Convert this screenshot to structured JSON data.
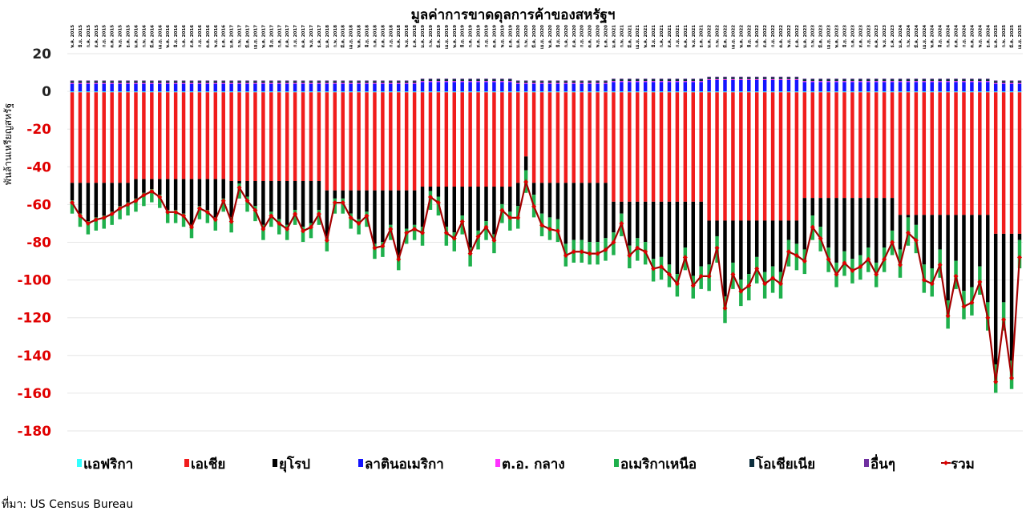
{
  "chart_data": {
    "type": "bar",
    "stacked": true,
    "title": "มูลค่าการขาดดุลการค้าของสหรัฐฯ",
    "y_label": "พันล้านเหรียญสหรัฐ",
    "source": "ที่มา: US Census Bureau",
    "ylim": [
      -180,
      20
    ],
    "yticks": [
      -180,
      -160,
      -140,
      -120,
      -100,
      -80,
      -60,
      -40,
      -20,
      0,
      20
    ],
    "grid": true,
    "legend": "bottom",
    "categories": [
      "พ.ค. 2015",
      "มิ.ย. 2015",
      "ก.ค. 2015",
      "ส.ค. 2015",
      "ก.ย. 2015",
      "ต.ค. 2015",
      "พ.ย. 2015",
      "ธ.ค. 2015",
      "ม.ค. 2016",
      "ก.พ. 2016",
      "มี.ค. 2016",
      "เม.ย. 2016",
      "พ.ค. 2016",
      "มิ.ย. 2016",
      "ก.ค. 2016",
      "ส.ค. 2016",
      "ก.ย. 2016",
      "ต.ค. 2016",
      "พ.ย. 2016",
      "ธ.ค. 2016",
      "ม.ค. 2017",
      "ก.พ. 2017",
      "มี.ค. 2017",
      "เม.ย. 2017",
      "พ.ค. 2017",
      "มิ.ย. 2017",
      "ก.ค. 2017",
      "ส.ค. 2017",
      "ก.ย. 2017",
      "ต.ค. 2017",
      "พ.ย. 2017",
      "ธ.ค. 2017",
      "ม.ค. 2018",
      "ก.พ. 2018",
      "มี.ค. 2018",
      "เม.ย. 2018",
      "พ.ค. 2018",
      "มิ.ย. 2018",
      "ก.ค. 2018",
      "ส.ค. 2018",
      "ก.ย. 2018",
      "ต.ค. 2018",
      "พ.ย. 2018",
      "ธ.ค. 2018",
      "ม.ค. 2019",
      "ก.พ. 2019",
      "มี.ค. 2019",
      "เม.ย. 2019",
      "พ.ค. 2019",
      "มิ.ย. 2019",
      "ก.ค. 2019",
      "ส.ค. 2019",
      "ก.ย. 2019",
      "ต.ค. 2019",
      "พ.ย. 2019",
      "ธ.ค. 2019",
      "ม.ค. 2020",
      "ก.พ. 2020",
      "มี.ค. 2020",
      "เม.ย. 2020",
      "พ.ค. 2020",
      "มิ.ย. 2020",
      "ก.ค. 2020",
      "ส.ค. 2020",
      "ก.ย. 2020",
      "ต.ค. 2020",
      "พ.ย. 2020",
      "ธ.ค. 2020",
      "ม.ค. 2021",
      "ก.พ. 2021",
      "มี.ค. 2021",
      "เม.ย. 2021",
      "พ.ค. 2021",
      "มิ.ย. 2021",
      "ก.ค. 2021",
      "ส.ค. 2021",
      "ก.ย. 2021",
      "ต.ค. 2021",
      "พ.ย. 2021",
      "ธ.ค. 2021",
      "ม.ค. 2022",
      "ก.พ. 2022",
      "มี.ค. 2022",
      "เม.ย. 2022",
      "พ.ค. 2022",
      "มิ.ย. 2022",
      "ก.ค. 2022",
      "ส.ค. 2022",
      "ก.ย. 2022",
      "ต.ค. 2022",
      "พ.ย. 2022",
      "ธ.ค. 2022",
      "ม.ค. 2023",
      "ก.พ. 2023",
      "มี.ค. 2023",
      "เม.ย. 2023",
      "พ.ค. 2023",
      "มิ.ย. 2023",
      "ก.ค. 2023",
      "ส.ค. 2023",
      "ก.ย. 2023",
      "ต.ค. 2023",
      "พ.ย. 2023",
      "ธ.ค. 2023",
      "ม.ค. 2024",
      "ก.พ. 2024",
      "มี.ค. 2024",
      "เม.ย. 2024",
      "พ.ค. 2024",
      "มิ.ย. 2024",
      "ก.ค. 2024",
      "ส.ค. 2024",
      "ก.ย. 2024",
      "ต.ค. 2024",
      "พ.ย. 2024",
      "ธ.ค. 2024",
      "ม.ค. 2025",
      "ก.พ. 2025",
      "มี.ค. 2025",
      "เม.ย. 2025"
    ],
    "series": [
      {
        "name": "แอฟริกา",
        "color": "#33ffff",
        "values": [
          -0.5,
          -0.5,
          -0.5,
          -0.5,
          -0.5,
          -0.5,
          -0.5,
          -0.5,
          -0.5,
          -0.5,
          -0.5,
          -0.5,
          -0.5,
          -0.5,
          -0.5,
          -0.5,
          -0.5,
          -0.5,
          -0.5,
          -0.5,
          -0.5,
          -0.5,
          -0.5,
          -0.5,
          -0.5,
          -0.5,
          -0.5,
          -0.5,
          -0.5,
          -0.5,
          -0.5,
          -0.5,
          -0.5,
          -0.5,
          -0.5,
          -0.5,
          -0.5,
          -0.5,
          -0.5,
          -0.5,
          -0.5,
          -0.5,
          -0.5,
          -0.5,
          -0.5,
          -0.5,
          -0.5,
          -0.5,
          -0.5,
          -0.5,
          -0.5,
          -0.5,
          -0.5,
          -0.5,
          -0.5,
          -0.5,
          -0.5,
          -0.5,
          -0.5,
          -0.5,
          -0.5,
          -0.5,
          -0.5,
          -0.5,
          -0.5,
          -0.5,
          -0.5,
          -0.5,
          -0.5,
          -0.5,
          -0.5,
          -0.5,
          -0.5,
          -0.5,
          -0.5,
          -0.5,
          -0.5,
          -0.5,
          -0.5,
          -0.5,
          -0.5,
          -0.5,
          -0.5,
          -0.5,
          -0.5,
          -0.5,
          -0.5,
          -0.5,
          -0.5,
          -0.5,
          -0.5,
          -0.5,
          -0.5,
          -0.5,
          -0.5,
          -0.5,
          -0.5,
          -0.5,
          -0.5,
          -0.5,
          -0.5,
          -0.5,
          -0.5,
          -0.5,
          -0.5,
          -0.5,
          -0.5,
          -0.5,
          -0.5,
          -0.5,
          -0.5,
          -0.5,
          -0.5,
          -0.5,
          -0.5,
          -0.5,
          -0.5,
          -0.5,
          -0.5,
          -0.5
        ]
      },
      {
        "name": "เอเชีย",
        "color": "#f01c1c",
        "values": [
          -48,
          -48,
          -48,
          -48,
          -48,
          -48,
          -48,
          -48,
          -46,
          -46,
          -46,
          -46,
          -46,
          -46,
          -46,
          -46,
          -46,
          -46,
          -46,
          -46,
          -47,
          -47,
          -47,
          -47,
          -47,
          -47,
          -47,
          -47,
          -47,
          -47,
          -47,
          -47,
          -52,
          -52,
          -52,
          -52,
          -52,
          -52,
          -52,
          -52,
          -52,
          -52,
          -52,
          -52,
          -50,
          -50,
          -50,
          -50,
          -50,
          -50,
          -50,
          -50,
          -50,
          -50,
          -50,
          -50,
          -48,
          -34,
          -48,
          -48,
          -48,
          -48,
          -48,
          -48,
          -48,
          -48,
          -48,
          -48,
          -58,
          -58,
          -58,
          -58,
          -58,
          -58,
          -58,
          -58,
          -58,
          -58,
          -58,
          -58,
          -68,
          -68,
          -68,
          -68,
          -68,
          -68,
          -68,
          -68,
          -68,
          -68,
          -68,
          -68,
          -56,
          -56,
          -56,
          -56,
          -56,
          -56,
          -56,
          -56,
          -56,
          -56,
          -56,
          -56,
          -65,
          -65,
          -65,
          -65,
          -65,
          -65,
          -65,
          -65,
          -65,
          -65,
          -65,
          -65,
          -75,
          -75,
          -75,
          -75
        ]
      },
      {
        "name": "ยุโรป",
        "color": "#000000",
        "values": [
          -9.3,
          -16.3,
          -20.3,
          -18.3,
          -17.3,
          -15.3,
          -12.3,
          -10.3,
          -10.3,
          -7.3,
          -5.3,
          -8.3,
          -16.3,
          -16.3,
          -18.3,
          -24.3,
          -14.3,
          -16.3,
          -20.3,
          -10.3,
          -19.3,
          -1.3,
          -8.3,
          -13.3,
          -23.3,
          -16.3,
          -20.3,
          -23.3,
          -15.3,
          -24.3,
          -22.3,
          -15.3,
          -24.3,
          -4.3,
          -4.3,
          -12.3,
          -15.3,
          -11.3,
          -28.3,
          -27.3,
          -18.3,
          -34.3,
          -20.3,
          -18.3,
          -21.3,
          -2.3,
          -5.3,
          -21.3,
          -24.3,
          -15.3,
          -32.3,
          -23.3,
          -18.3,
          -25.3,
          -9.3,
          -13.3,
          -12.3,
          -7.3,
          -6.3,
          -16.3,
          -18.3,
          -19.3,
          -32.3,
          -30.3,
          -30.3,
          -31.3,
          -31.3,
          -29.3,
          -16.3,
          -6.3,
          -23.3,
          -19.3,
          -21.3,
          -30.3,
          -29.3,
          -33.3,
          -38.3,
          -24.3,
          -39.3,
          -34.3,
          -23.3,
          -8.3,
          -40.3,
          -22.3,
          -31.3,
          -28.3,
          -19.3,
          -27.3,
          -24.3,
          -27.3,
          -10.3,
          -12.3,
          -27.3,
          -9.3,
          -15.3,
          -26.3,
          -34.3,
          -28.3,
          -32.3,
          -30.3,
          -26.3,
          -34.3,
          -26.3,
          -17.3,
          -18.3,
          -1.3,
          -5.3,
          -26.3,
          -28.3,
          -18.3,
          -45.3,
          -24.3,
          -40.3,
          -38.3,
          -27.3,
          -46.3,
          -69.3,
          -36.3,
          -67.3,
          -3.3
        ]
      },
      {
        "name": "ลาตินอเมริกา",
        "color": "#1414ff",
        "values": [
          4,
          4,
          4,
          4,
          4,
          4,
          4,
          4,
          4,
          4,
          4,
          4,
          4,
          4,
          4,
          4,
          4,
          4,
          4,
          4,
          4,
          4,
          4,
          4,
          4,
          4,
          4,
          4,
          4,
          4,
          4,
          4,
          4,
          4,
          4,
          4,
          4,
          4,
          4,
          4,
          4,
          4,
          4,
          4,
          5,
          5,
          5,
          5,
          5,
          5,
          5,
          5,
          5,
          5,
          5,
          5,
          4,
          4,
          4,
          4,
          4,
          4,
          4,
          4,
          4,
          4,
          4,
          4,
          5,
          5,
          5,
          5,
          5,
          5,
          5,
          5,
          5,
          5,
          5,
          5,
          6,
          6,
          6,
          6,
          6,
          6,
          6,
          6,
          6,
          6,
          6,
          6,
          5,
          5,
          5,
          5,
          5,
          5,
          5,
          5,
          5,
          5,
          5,
          5,
          5,
          5,
          5,
          5,
          5,
          5,
          5,
          5,
          5,
          5,
          5,
          5,
          4,
          4,
          4,
          4
        ]
      },
      {
        "name": "ต.อ. กลาง",
        "color": "#ff33ff",
        "values": [
          0.5,
          0.5,
          0.5,
          0.5,
          0.5,
          0.5,
          0.5,
          0.5,
          0.5,
          0.5,
          0.5,
          0.5,
          0.5,
          0.5,
          0.5,
          0.5,
          0.5,
          0.5,
          0.5,
          0.5,
          0.5,
          0.5,
          0.5,
          0.5,
          0.5,
          0.5,
          0.5,
          0.5,
          0.5,
          0.5,
          0.5,
          0.5,
          0.5,
          0.5,
          0.5,
          0.5,
          0.5,
          0.5,
          0.5,
          0.5,
          0.5,
          0.5,
          0.5,
          0.5,
          0.5,
          0.5,
          0.5,
          0.5,
          0.5,
          0.5,
          0.5,
          0.5,
          0.5,
          0.5,
          0.5,
          0.5,
          0.5,
          0.5,
          0.5,
          0.5,
          0.5,
          0.5,
          0.5,
          0.5,
          0.5,
          0.5,
          0.5,
          0.5,
          0.5,
          0.5,
          0.5,
          0.5,
          0.5,
          0.5,
          0.5,
          0.5,
          0.5,
          0.5,
          0.5,
          0.5,
          0.5,
          0.5,
          0.5,
          0.5,
          0.5,
          0.5,
          0.5,
          0.5,
          0.5,
          0.5,
          0.5,
          0.5,
          0.5,
          0.5,
          0.5,
          0.5,
          0.5,
          0.5,
          0.5,
          0.5,
          0.5,
          0.5,
          0.5,
          0.5,
          0.5,
          0.5,
          0.5,
          0.5,
          0.5,
          0.5,
          0.5,
          0.5,
          0.5,
          0.5,
          0.5,
          0.5,
          0.5,
          0.5,
          0.5,
          0.5
        ]
      },
      {
        "name": "อเมริกาเหนือ",
        "color": "#1fb04c",
        "values": [
          -7,
          -7,
          -7,
          -7,
          -7,
          -7,
          -7,
          -7,
          -7,
          -7,
          -7,
          -7,
          -7,
          -7,
          -7,
          -7,
          -7,
          -7,
          -7,
          -7,
          -8,
          -8,
          -8,
          -8,
          -8,
          -8,
          -8,
          -8,
          -8,
          -8,
          -8,
          -8,
          -8,
          -8,
          -8,
          -8,
          -8,
          -8,
          -8,
          -8,
          -8,
          -8,
          -8,
          -8,
          -10,
          -10,
          -10,
          -10,
          -10,
          -10,
          -10,
          -10,
          -10,
          -10,
          -10,
          -10,
          -12,
          -12,
          -12,
          -12,
          -12,
          -12,
          -12,
          -12,
          -12,
          -12,
          -12,
          -12,
          -12,
          -12,
          -12,
          -12,
          -12,
          -12,
          -12,
          -12,
          -12,
          -12,
          -12,
          -12,
          -14,
          -14,
          -14,
          -14,
          -14,
          -14,
          -14,
          -14,
          -14,
          -14,
          -14,
          -14,
          -13,
          -13,
          -13,
          -13,
          -13,
          -13,
          -13,
          -13,
          -13,
          -13,
          -13,
          -13,
          -15,
          -15,
          -15,
          -15,
          -15,
          -15,
          -15,
          -15,
          -15,
          -15,
          -15,
          -15,
          -15,
          -15,
          -15,
          -15
        ]
      },
      {
        "name": "โอเชียเนีย",
        "color": "#0c2e3e",
        "values": [
          1,
          1,
          1,
          1,
          1,
          1,
          1,
          1,
          1,
          1,
          1,
          1,
          1,
          1,
          1,
          1,
          1,
          1,
          1,
          1,
          1,
          1,
          1,
          1,
          1,
          1,
          1,
          1,
          1,
          1,
          1,
          1,
          1,
          1,
          1,
          1,
          1,
          1,
          1,
          1,
          1,
          1,
          1,
          1,
          1,
          1,
          1,
          1,
          1,
          1,
          1,
          1,
          1,
          1,
          1,
          1,
          1,
          1,
          1,
          1,
          1,
          1,
          1,
          1,
          1,
          1,
          1,
          1,
          1,
          1,
          1,
          1,
          1,
          1,
          1,
          1,
          1,
          1,
          1,
          1,
          1,
          1,
          1,
          1,
          1,
          1,
          1,
          1,
          1,
          1,
          1,
          1,
          1,
          1,
          1,
          1,
          1,
          1,
          1,
          1,
          1,
          1,
          1,
          1,
          1,
          1,
          1,
          1,
          1,
          1,
          1,
          1,
          1,
          1,
          1,
          1,
          1,
          1,
          1,
          1
        ]
      },
      {
        "name": "อื่นๆ",
        "color": "#7030a0",
        "values": [
          0.3,
          0.3,
          0.3,
          0.3,
          0.3,
          0.3,
          0.3,
          0.3,
          0.3,
          0.3,
          0.3,
          0.3,
          0.3,
          0.3,
          0.3,
          0.3,
          0.3,
          0.3,
          0.3,
          0.3,
          0.3,
          0.3,
          0.3,
          0.3,
          0.3,
          0.3,
          0.3,
          0.3,
          0.3,
          0.3,
          0.3,
          0.3,
          0.3,
          0.3,
          0.3,
          0.3,
          0.3,
          0.3,
          0.3,
          0.3,
          0.3,
          0.3,
          0.3,
          0.3,
          0.3,
          0.3,
          0.3,
          0.3,
          0.3,
          0.3,
          0.3,
          0.3,
          0.3,
          0.3,
          0.3,
          0.3,
          0.3,
          0.3,
          0.3,
          0.3,
          0.3,
          0.3,
          0.3,
          0.3,
          0.3,
          0.3,
          0.3,
          0.3,
          0.3,
          0.3,
          0.3,
          0.3,
          0.3,
          0.3,
          0.3,
          0.3,
          0.3,
          0.3,
          0.3,
          0.3,
          0.3,
          0.3,
          0.3,
          0.3,
          0.3,
          0.3,
          0.3,
          0.3,
          0.3,
          0.3,
          0.3,
          0.3,
          0.3,
          0.3,
          0.3,
          0.3,
          0.3,
          0.3,
          0.3,
          0.3,
          0.3,
          0.3,
          0.3,
          0.3,
          0.3,
          0.3,
          0.3,
          0.3,
          0.3,
          0.3,
          0.3,
          0.3,
          0.3,
          0.3,
          0.3,
          0.3,
          0.3,
          0.3,
          0.3,
          0.3
        ]
      },
      {
        "name": "รวม",
        "color": "#a50000",
        "type": "line",
        "values": [
          -59,
          -66,
          -70,
          -68,
          -67,
          -65,
          -62,
          -60,
          -58,
          -55,
          -53,
          -56,
          -64,
          -64,
          -66,
          -72,
          -62,
          -64,
          -68,
          -58,
          -69,
          -51,
          -58,
          -63,
          -73,
          -66,
          -70,
          -73,
          -65,
          -74,
          -72,
          -65,
          -79,
          -59,
          -59,
          -67,
          -70,
          -66,
          -83,
          -82,
          -73,
          -89,
          -75,
          -73,
          -75,
          -56,
          -59,
          -75,
          -78,
          -69,
          -86,
          -77,
          -72,
          -79,
          -63,
          -67,
          -67,
          -48,
          -61,
          -71,
          -73,
          -74,
          -87,
          -85,
          -85,
          -86,
          -86,
          -84,
          -80,
          -70,
          -87,
          -83,
          -85,
          -94,
          -93,
          -97,
          -102,
          -88,
          -103,
          -98,
          -98,
          -83,
          -115,
          -97,
          -106,
          -103,
          -94,
          -102,
          -99,
          -102,
          -85,
          -87,
          -90,
          -72,
          -78,
          -89,
          -97,
          -91,
          -95,
          -93,
          -89,
          -97,
          -89,
          -80,
          -92,
          -75,
          -79,
          -100,
          -102,
          -92,
          -119,
          -98,
          -114,
          -112,
          -101,
          -120,
          -154,
          -121,
          -152,
          -88
        ]
      }
    ]
  }
}
